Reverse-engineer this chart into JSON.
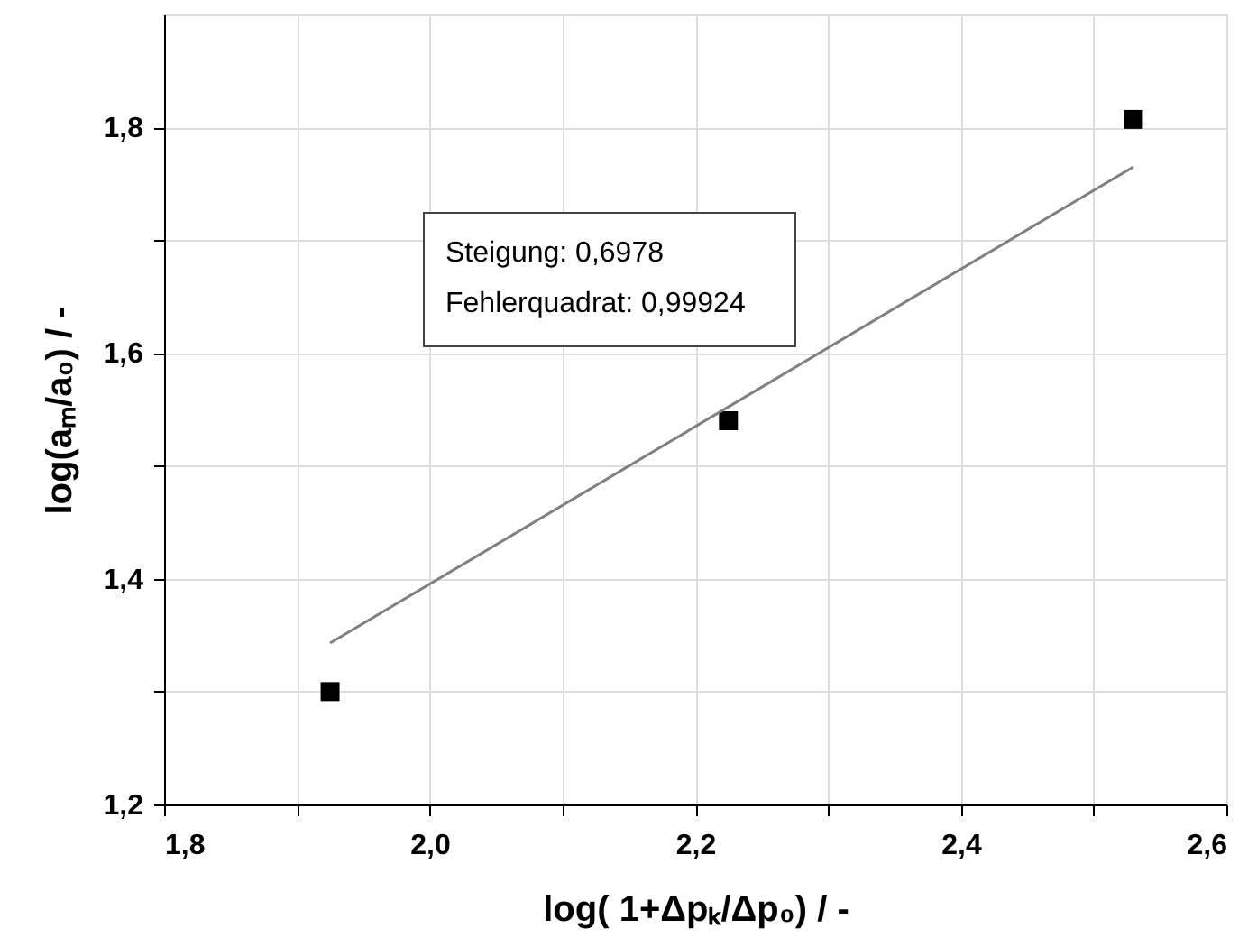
{
  "chart_data": {
    "type": "scatter",
    "xlabel": "log( 1+Δpₖ/Δp₀) / -",
    "ylabel": "log(aₘ/a₀) / -",
    "xlim": [
      1.8,
      2.6
    ],
    "ylim": [
      1.2,
      1.9
    ],
    "xticks": [
      {
        "value": 1.8,
        "label": "1,8"
      },
      {
        "value": 1.9,
        "label": null
      },
      {
        "value": 2.0,
        "label": "2,0"
      },
      {
        "value": 2.1,
        "label": null
      },
      {
        "value": 2.2,
        "label": "2,2"
      },
      {
        "value": 2.3,
        "label": null
      },
      {
        "value": 2.4,
        "label": "2,4"
      },
      {
        "value": 2.5,
        "label": null
      },
      {
        "value": 2.6,
        "label": "2,6"
      }
    ],
    "yticks": [
      {
        "value": 1.2,
        "label": "1,2"
      },
      {
        "value": 1.3,
        "label": null
      },
      {
        "value": 1.4,
        "label": "1,4"
      },
      {
        "value": 1.5,
        "label": null
      },
      {
        "value": 1.6,
        "label": "1,6"
      },
      {
        "value": 1.7,
        "label": null
      },
      {
        "value": 1.8,
        "label": "1,8"
      }
    ],
    "grid": true,
    "series": [
      {
        "marker": "square",
        "color": "#000000",
        "x": [
          1.925,
          2.225,
          2.53
        ],
        "values": [
          1.3,
          1.54,
          1.807
        ]
      },
      {
        "type": "line",
        "color": "#808080",
        "x": [
          1.925,
          2.53
        ],
        "values": [
          1.343,
          1.765
        ]
      }
    ],
    "annotations": [
      "Steigung: 0,6978",
      "Fehlerquadrat: 0,99924"
    ]
  }
}
